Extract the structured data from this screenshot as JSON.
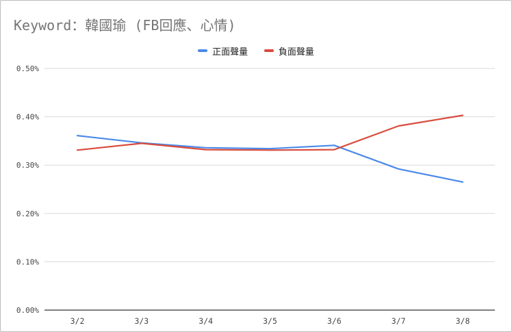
{
  "chart_data": {
    "type": "line",
    "title": "Keyword：韓國瑜 (FB回應、心情)",
    "xlabel": "",
    "ylabel": "",
    "categories": [
      "3/2",
      "3/3",
      "3/4",
      "3/5",
      "3/6",
      "3/7",
      "3/8"
    ],
    "ylim": [
      0,
      0.5
    ],
    "y_ticks": [
      0,
      0.1,
      0.2,
      0.3,
      0.4,
      0.5
    ],
    "y_tick_labels": [
      "0.00%",
      "0.10%",
      "0.20%",
      "0.30%",
      "0.40%",
      "0.50%"
    ],
    "grid": true,
    "legend_position": "top",
    "series": [
      {
        "name": "正面聲量",
        "color": "#4a89e8",
        "values": [
          0.361,
          0.346,
          0.336,
          0.334,
          0.341,
          0.292,
          0.265
        ]
      },
      {
        "name": "負面聲量",
        "color": "#d94c3d",
        "values": [
          0.331,
          0.345,
          0.332,
          0.331,
          0.332,
          0.381,
          0.403
        ]
      }
    ]
  }
}
